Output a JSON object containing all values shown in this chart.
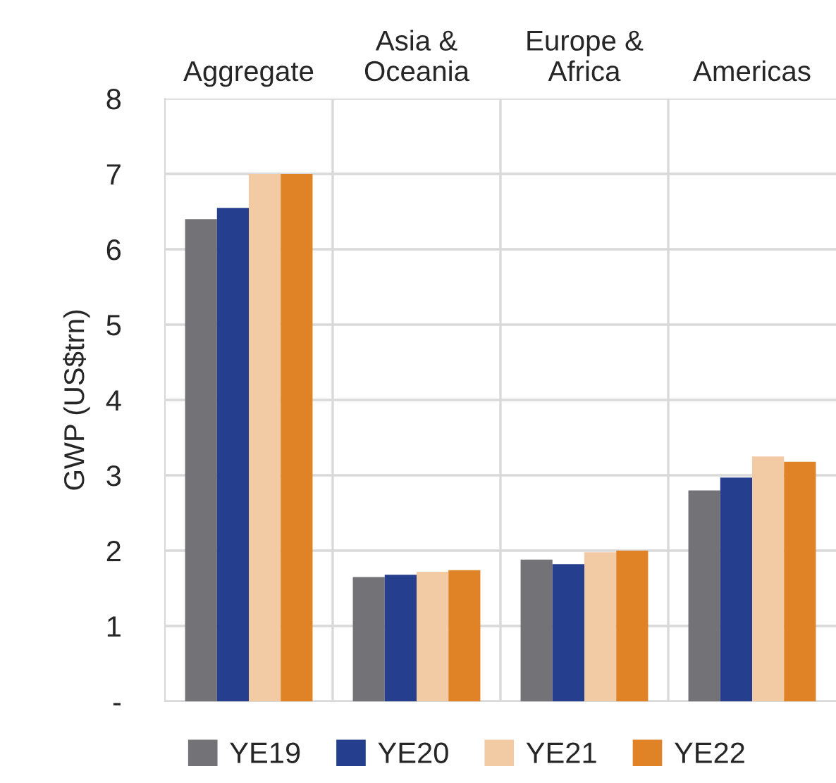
{
  "chart_data": {
    "type": "bar",
    "ylabel": "GWP (US$trn)",
    "categories": [
      "Aggregate",
      "Asia &\nOceania",
      "Europe &\nAfrica",
      "Americas"
    ],
    "series": [
      {
        "name": "YE19",
        "color": "#737276",
        "values": [
          6.4,
          1.65,
          1.88,
          2.8
        ]
      },
      {
        "name": "YE20",
        "color": "#253f8e",
        "values": [
          6.55,
          1.68,
          1.82,
          2.97
        ]
      },
      {
        "name": "YE21",
        "color": "#f2cba5",
        "values": [
          7.0,
          1.72,
          1.98,
          3.25
        ]
      },
      {
        "name": "YE22",
        "color": "#e08327",
        "values": [
          7.0,
          1.74,
          2.0,
          3.18
        ]
      }
    ],
    "ylim": [
      0,
      8
    ],
    "yticks": [
      {
        "value": 0,
        "label": "-"
      },
      1,
      2,
      3,
      4,
      5,
      6,
      7,
      8
    ],
    "grid": true,
    "legend": "bottom"
  }
}
